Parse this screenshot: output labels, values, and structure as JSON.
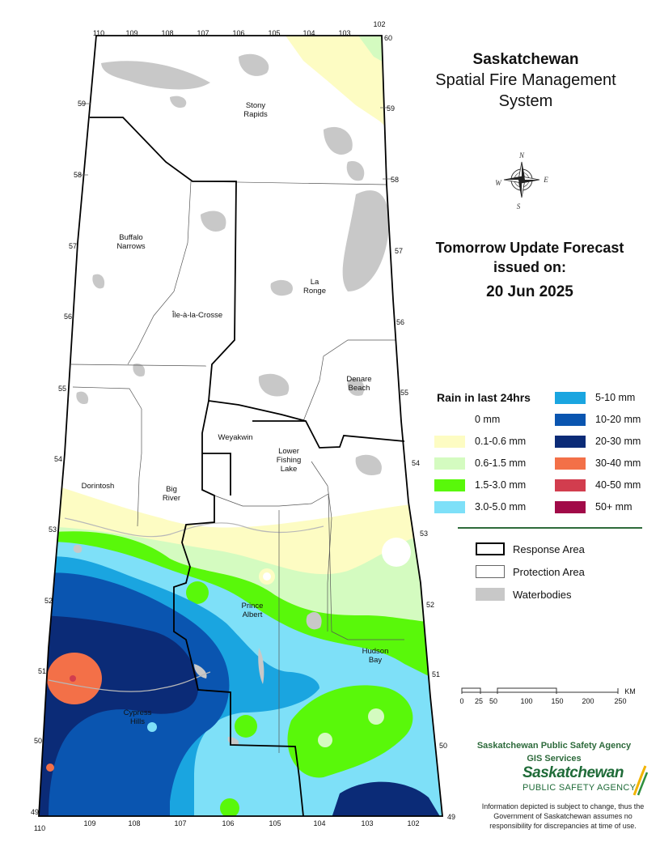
{
  "title": {
    "line1": "Saskatchewan",
    "line2": "Spatial Fire Management",
    "line3": "System"
  },
  "forecast": {
    "line1": "Tomorrow Update Forecast",
    "line2": "issued on:",
    "date": "20 Jun 2025"
  },
  "rain_legend": {
    "title": "Rain in last 24hrs",
    "left": [
      {
        "label": "0 mm",
        "color": "#ffffff"
      },
      {
        "label": "0.1-0.6 mm",
        "color": "#fdfcc3"
      },
      {
        "label": "0.6-1.5 mm",
        "color": "#d4fbc0"
      },
      {
        "label": "1.5-3.0 mm",
        "color": "#59f80a"
      },
      {
        "label": "3.0-5.0 mm",
        "color": "#7ee0f8"
      }
    ],
    "right": [
      {
        "label": "5-10 mm",
        "color": "#1aa5e0"
      },
      {
        "label": "10-20 mm",
        "color": "#0a55b0"
      },
      {
        "label": "20-30 mm",
        "color": "#0b2b77"
      },
      {
        "label": "30-40 mm",
        "color": "#f37048"
      },
      {
        "label": "40-50 mm",
        "color": "#d23d4e"
      },
      {
        "label": "50+ mm",
        "color": "#a10a48"
      }
    ]
  },
  "boundary_legend": [
    {
      "label": "Response Area",
      "type": "response"
    },
    {
      "label": "Protection Area",
      "type": "protection"
    },
    {
      "label": "Waterbodies",
      "type": "water",
      "color": "#c8c8c8"
    }
  ],
  "scale": {
    "labels": [
      "0",
      "25",
      "50",
      "100",
      "150",
      "200",
      "250"
    ],
    "unit": "KM"
  },
  "agency": {
    "line1": "Saskatchewan Public Safety Agency",
    "line2": "GIS  Services"
  },
  "logo": {
    "line1": "Saskatchewan",
    "line2": "PUBLIC SAFETY AGENCY"
  },
  "disclaimer": "Information depicted is subject to change, thus the Government of Saskatchewan assumes no responsibility for discrepancies at time of use.",
  "compass": {
    "n": "N",
    "s": "S",
    "e": "E",
    "w": "W"
  },
  "places": [
    {
      "name": "Stony\nRapids"
    },
    {
      "name": "Buffalo\nNarrows"
    },
    {
      "name": "La\nRonge"
    },
    {
      "name": "Île-à-la-Crosse"
    },
    {
      "name": "Denare\nBeach"
    },
    {
      "name": "Weyakwin"
    },
    {
      "name": "Lower\nFishing\nLake"
    },
    {
      "name": "Dorintosh"
    },
    {
      "name": "Big\nRiver"
    },
    {
      "name": "Prince\nAlbert"
    },
    {
      "name": "Hudson\nBay"
    },
    {
      "name": "Cypress\nHills"
    }
  ],
  "longitude_top": [
    "110",
    "109",
    "108",
    "107",
    "106",
    "105",
    "104",
    "103",
    "102"
  ],
  "longitude_bottom": [
    "110",
    "109",
    "108",
    "107",
    "106",
    "105",
    "104",
    "103",
    "102"
  ],
  "latitude_left": [
    "59",
    "58",
    "57",
    "56",
    "55",
    "54",
    "53",
    "52",
    "51",
    "50",
    "49"
  ],
  "latitude_right": [
    "60",
    "59",
    "58",
    "57",
    "56",
    "55",
    "54",
    "53",
    "52",
    "51",
    "50",
    "49"
  ]
}
